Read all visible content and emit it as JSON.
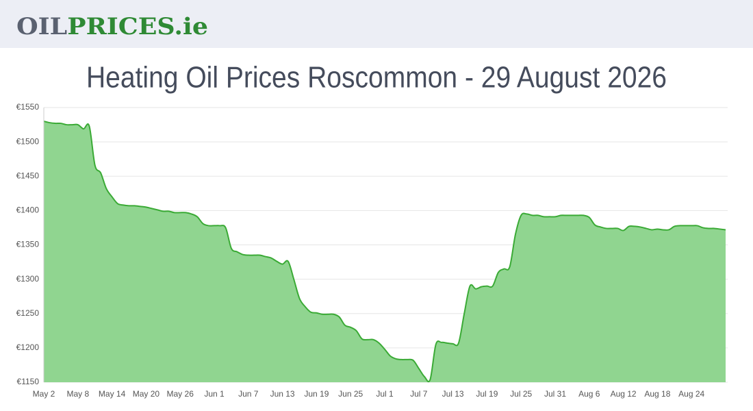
{
  "header": {
    "logo": [
      "OIL",
      "PRICES.ie"
    ]
  },
  "chart_data": {
    "type": "area",
    "title": "Heating Oil Prices Roscommon - 29 August 2026",
    "color": "#3aaa35",
    "fill": "#90d590",
    "grid": true,
    "categories": [
      "May 2",
      null,
      null,
      null,
      null,
      null,
      "May 8",
      null,
      null,
      null,
      null,
      null,
      "May 14",
      null,
      null,
      null,
      null,
      null,
      "May 20",
      null,
      null,
      null,
      null,
      null,
      "May 26",
      null,
      null,
      null,
      null,
      null,
      "Jun 1",
      null,
      null,
      null,
      null,
      null,
      "Jun 7",
      null,
      null,
      null,
      null,
      null,
      "Jun 13",
      null,
      null,
      null,
      null,
      null,
      "Jun 19",
      null,
      null,
      null,
      null,
      null,
      "Jun 25",
      null,
      null,
      null,
      null,
      null,
      "Jul 1",
      null,
      null,
      null,
      null,
      null,
      "Jul 7",
      null,
      null,
      null,
      null,
      null,
      "Jul 13",
      null,
      null,
      null,
      null,
      null,
      "Jul 19",
      null,
      null,
      null,
      null,
      null,
      "Jul 25",
      null,
      null,
      null,
      null,
      null,
      "Jul 31",
      null,
      null,
      null,
      null,
      null,
      "Aug 6",
      null,
      null,
      null,
      null,
      null,
      "Aug 12",
      null,
      null,
      null,
      null,
      null,
      "Aug 18",
      null,
      null,
      null,
      null,
      null,
      "Aug 24",
      null,
      null,
      null,
      null,
      null,
      null
    ],
    "values": [
      1530,
      1528,
      1527,
      1527,
      1525,
      1525,
      1525,
      1519,
      1523,
      1466,
      1455,
      1432,
      1420,
      1410,
      1408,
      1407,
      1407,
      1406,
      1405,
      1403,
      1401,
      1399,
      1399,
      1397,
      1397,
      1397,
      1395,
      1391,
      1381,
      1378,
      1378,
      1378,
      1375,
      1345,
      1340,
      1336,
      1335,
      1335,
      1335,
      1333,
      1331,
      1326,
      1322,
      1326,
      1300,
      1272,
      1260,
      1252,
      1251,
      1249,
      1249,
      1249,
      1245,
      1233,
      1230,
      1225,
      1213,
      1212,
      1212,
      1207,
      1198,
      1188,
      1184,
      1183,
      1183,
      1182,
      1170,
      1158,
      1154,
      1205,
      1208,
      1207,
      1206,
      1207,
      1250,
      1290,
      1286,
      1289,
      1290,
      1290,
      1310,
      1315,
      1318,
      1365,
      1393,
      1395,
      1393,
      1393,
      1391,
      1391,
      1391,
      1393,
      1393,
      1393,
      1393,
      1393,
      1390,
      1379,
      1376,
      1374,
      1374,
      1374,
      1371,
      1377,
      1377,
      1376,
      1374,
      1372,
      1373,
      1372,
      1372,
      1377,
      1378,
      1378,
      1378,
      1378,
      1375,
      1374,
      1374,
      1373,
      1372
    ],
    "ylim": [
      1150,
      1550
    ],
    "yticks": [
      {
        "value": 1150,
        "label": "€1150"
      },
      {
        "value": 1200,
        "label": "€1200"
      },
      {
        "value": 1250,
        "label": "€1250"
      },
      {
        "value": 1300,
        "label": "€1300"
      },
      {
        "value": 1350,
        "label": "€1350"
      },
      {
        "value": 1400,
        "label": "€1400"
      },
      {
        "value": 1450,
        "label": "€1450"
      },
      {
        "value": 1500,
        "label": "€1500"
      },
      {
        "value": 1550,
        "label": "€1550"
      }
    ]
  }
}
